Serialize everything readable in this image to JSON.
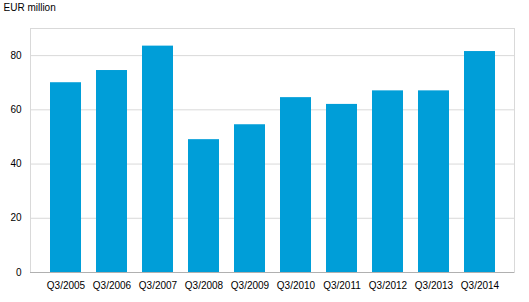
{
  "chart_data": {
    "type": "bar",
    "y_label": "EUR million",
    "categories": [
      "Q3/2005",
      "Q3/2006",
      "Q3/2007",
      "Q3/2008",
      "Q3/2009",
      "Q3/2010",
      "Q3/2011",
      "Q3/2012",
      "Q3/2013",
      "Q3/2014"
    ],
    "values": [
      70,
      74.5,
      83.5,
      49,
      54.5,
      64.5,
      62,
      67,
      67,
      81.5
    ],
    "color": "#009ed8",
    "ylim": [
      0,
      90
    ],
    "yticks": [
      0,
      20,
      40,
      60,
      80
    ],
    "grid": true
  }
}
